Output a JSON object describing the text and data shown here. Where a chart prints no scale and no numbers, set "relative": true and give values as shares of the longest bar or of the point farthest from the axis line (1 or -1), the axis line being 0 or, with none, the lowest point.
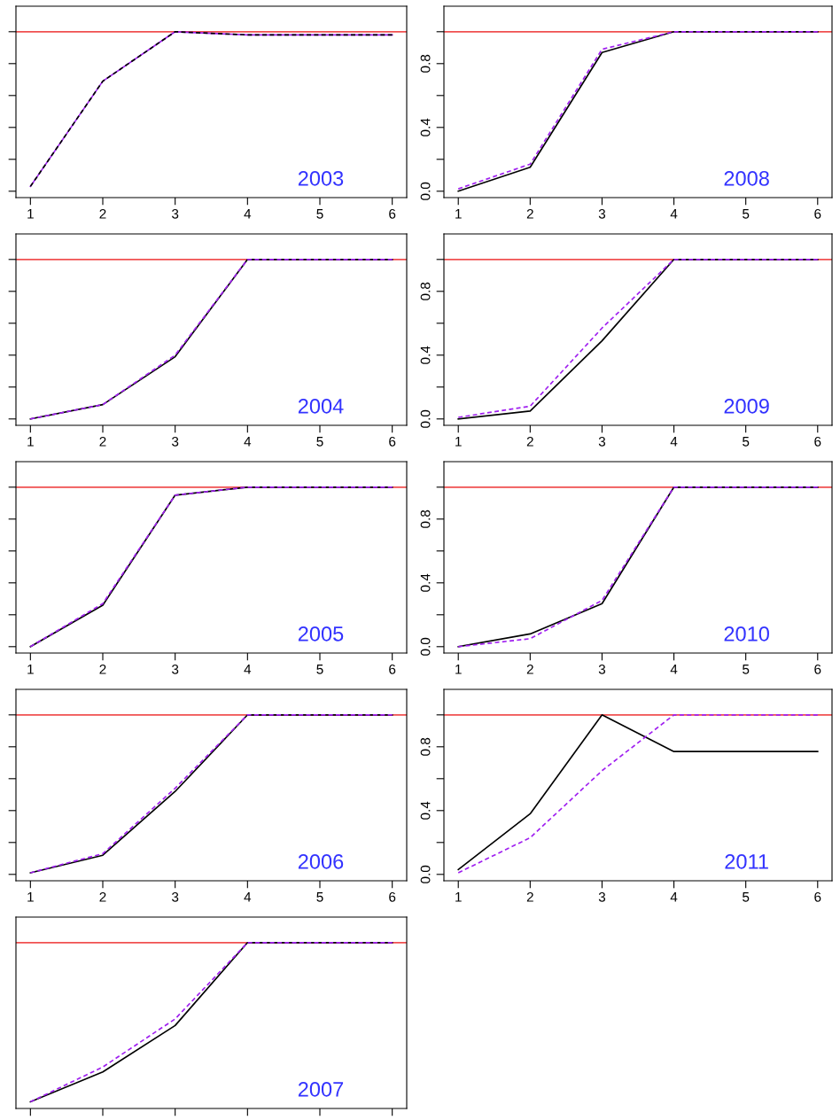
{
  "chart_data": [
    {
      "type": "line",
      "annotations": [
        "2003"
      ],
      "x": [
        1,
        2,
        3,
        4,
        5,
        6
      ],
      "xlim": [
        0.8,
        6.2
      ],
      "xticks": [
        1,
        2,
        3,
        4,
        5,
        6
      ],
      "ylim": [
        -0.04,
        1.16
      ],
      "yticks": [
        0,
        0.2,
        0.4,
        0.6,
        0.8,
        1.0
      ],
      "tick_labels": "x",
      "grid": false,
      "ref_lines": [
        {
          "axis": "y",
          "value": 1.0,
          "color": "#f05050"
        }
      ],
      "series": [
        {
          "color": "#a020f0",
          "line_style": "solid",
          "values": [
            0.03,
            0.69,
            1.0,
            0.98,
            0.98,
            0.98
          ]
        },
        {
          "color": "#000000",
          "line_style": "dashed",
          "values": [
            0.03,
            0.69,
            1.0,
            0.98,
            0.98,
            0.98
          ]
        }
      ]
    },
    {
      "type": "line",
      "annotations": [
        "2008"
      ],
      "x": [
        1,
        2,
        3,
        4,
        5,
        6
      ],
      "xlim": [
        0.8,
        6.2
      ],
      "xticks": [
        1,
        2,
        3,
        4,
        5,
        6
      ],
      "ylim": [
        -0.04,
        1.16
      ],
      "yticks": [
        {
          "value": 0,
          "label": "0.0"
        },
        {
          "value": 0.2,
          "label": null
        },
        {
          "value": 0.4,
          "label": "0.4"
        },
        {
          "value": 0.6,
          "label": null
        },
        {
          "value": 0.8,
          "label": "0.8"
        },
        {
          "value": 1.0,
          "label": null
        }
      ],
      "grid": false,
      "ref_lines": [
        {
          "axis": "y",
          "value": 1.0,
          "color": "#f05050"
        }
      ],
      "series": [
        {
          "color": "#000000",
          "line_style": "solid",
          "values": [
            0.0,
            0.15,
            0.87,
            1.0,
            1.0,
            1.0
          ]
        },
        {
          "color": "#a020f0",
          "line_style": "dashed",
          "values": [
            0.015,
            0.17,
            0.89,
            1.0,
            1.0,
            1.0
          ]
        }
      ]
    },
    {
      "type": "line",
      "annotations": [
        "2004"
      ],
      "x": [
        1,
        2,
        3,
        4,
        5,
        6
      ],
      "xlim": [
        0.8,
        6.2
      ],
      "xticks": [
        1,
        2,
        3,
        4,
        5,
        6
      ],
      "ylim": [
        -0.04,
        1.16
      ],
      "yticks": [
        0,
        0.2,
        0.4,
        0.6,
        0.8,
        1.0
      ],
      "tick_labels": "x",
      "grid": false,
      "ref_lines": [
        {
          "axis": "y",
          "value": 1.0,
          "color": "#f05050"
        }
      ],
      "series": [
        {
          "color": "#000000",
          "line_style": "solid",
          "values": [
            0.0,
            0.09,
            0.39,
            1.0,
            1.0,
            1.0
          ]
        },
        {
          "color": "#a020f0",
          "line_style": "dashed",
          "values": [
            0.0,
            0.09,
            0.4,
            1.0,
            1.0,
            1.0
          ]
        }
      ]
    },
    {
      "type": "line",
      "annotations": [
        "2009"
      ],
      "x": [
        1,
        2,
        3,
        4,
        5,
        6
      ],
      "xlim": [
        0.8,
        6.2
      ],
      "xticks": [
        1,
        2,
        3,
        4,
        5,
        6
      ],
      "ylim": [
        -0.04,
        1.16
      ],
      "yticks": [
        {
          "value": 0,
          "label": "0.0"
        },
        {
          "value": 0.2,
          "label": null
        },
        {
          "value": 0.4,
          "label": "0.4"
        },
        {
          "value": 0.6,
          "label": null
        },
        {
          "value": 0.8,
          "label": "0.8"
        },
        {
          "value": 1.0,
          "label": null
        }
      ],
      "grid": false,
      "ref_lines": [
        {
          "axis": "y",
          "value": 1.0,
          "color": "#f05050"
        }
      ],
      "series": [
        {
          "color": "#000000",
          "line_style": "solid",
          "values": [
            0.0,
            0.05,
            0.49,
            1.0,
            1.0,
            1.0
          ]
        },
        {
          "color": "#a020f0",
          "line_style": "dashed",
          "values": [
            0.01,
            0.08,
            0.57,
            1.0,
            1.0,
            1.0
          ]
        }
      ]
    },
    {
      "type": "line",
      "annotations": [
        "2005"
      ],
      "x": [
        1,
        2,
        3,
        4,
        5,
        6
      ],
      "xlim": [
        0.8,
        6.2
      ],
      "xticks": [
        1,
        2,
        3,
        4,
        5,
        6
      ],
      "ylim": [
        -0.04,
        1.16
      ],
      "yticks": [
        0,
        0.2,
        0.4,
        0.6,
        0.8,
        1.0
      ],
      "tick_labels": "x",
      "grid": false,
      "ref_lines": [
        {
          "axis": "y",
          "value": 1.0,
          "color": "#f05050"
        }
      ],
      "series": [
        {
          "color": "#000000",
          "line_style": "solid",
          "values": [
            0.0,
            0.26,
            0.95,
            1.0,
            1.0,
            1.0
          ]
        },
        {
          "color": "#a020f0",
          "line_style": "dashed",
          "values": [
            0.0,
            0.27,
            0.95,
            1.0,
            1.0,
            1.0
          ]
        }
      ]
    },
    {
      "type": "line",
      "annotations": [
        "2010"
      ],
      "x": [
        1,
        2,
        3,
        4,
        5,
        6
      ],
      "xlim": [
        0.8,
        6.2
      ],
      "xticks": [
        1,
        2,
        3,
        4,
        5,
        6
      ],
      "ylim": [
        -0.04,
        1.16
      ],
      "yticks": [
        {
          "value": 0,
          "label": "0.0"
        },
        {
          "value": 0.2,
          "label": null
        },
        {
          "value": 0.4,
          "label": "0.4"
        },
        {
          "value": 0.6,
          "label": null
        },
        {
          "value": 0.8,
          "label": "0.8"
        },
        {
          "value": 1.0,
          "label": null
        }
      ],
      "grid": false,
      "ref_lines": [
        {
          "axis": "y",
          "value": 1.0,
          "color": "#f05050"
        }
      ],
      "series": [
        {
          "color": "#000000",
          "line_style": "solid",
          "values": [
            0.0,
            0.08,
            0.27,
            1.0,
            1.0,
            1.0
          ]
        },
        {
          "color": "#a020f0",
          "line_style": "dashed",
          "values": [
            0.0,
            0.05,
            0.29,
            1.0,
            1.0,
            1.0
          ]
        }
      ]
    },
    {
      "type": "line",
      "annotations": [
        "2006"
      ],
      "x": [
        1,
        2,
        3,
        4,
        5,
        6
      ],
      "xlim": [
        0.8,
        6.2
      ],
      "xticks": [
        1,
        2,
        3,
        4,
        5,
        6
      ],
      "ylim": [
        -0.04,
        1.16
      ],
      "yticks": [
        0,
        0.2,
        0.4,
        0.6,
        0.8,
        1.0
      ],
      "tick_labels": "x",
      "grid": false,
      "ref_lines": [
        {
          "axis": "y",
          "value": 1.0,
          "color": "#f05050"
        }
      ],
      "series": [
        {
          "color": "#000000",
          "line_style": "solid",
          "values": [
            0.01,
            0.12,
            0.52,
            1.0,
            1.0,
            1.0
          ]
        },
        {
          "color": "#a020f0",
          "line_style": "dashed",
          "values": [
            0.01,
            0.13,
            0.54,
            1.0,
            1.0,
            1.0
          ]
        }
      ]
    },
    {
      "type": "line",
      "annotations": [
        "2011"
      ],
      "x": [
        1,
        2,
        3,
        4,
        5,
        6
      ],
      "xlim": [
        0.8,
        6.2
      ],
      "xticks": [
        1,
        2,
        3,
        4,
        5,
        6
      ],
      "ylim": [
        -0.04,
        1.16
      ],
      "yticks": [
        {
          "value": 0,
          "label": "0.0"
        },
        {
          "value": 0.2,
          "label": null
        },
        {
          "value": 0.4,
          "label": "0.4"
        },
        {
          "value": 0.6,
          "label": null
        },
        {
          "value": 0.8,
          "label": "0.8"
        },
        {
          "value": 1.0,
          "label": null
        }
      ],
      "grid": false,
      "ref_lines": [
        {
          "axis": "y",
          "value": 1.0,
          "color": "#f05050"
        }
      ],
      "series": [
        {
          "color": "#000000",
          "line_style": "solid",
          "values": [
            0.03,
            0.38,
            1.0,
            0.77,
            0.77,
            0.77
          ]
        },
        {
          "color": "#a020f0",
          "line_style": "dashed",
          "values": [
            0.01,
            0.23,
            0.65,
            1.0,
            1.0,
            1.0
          ]
        }
      ]
    },
    {
      "type": "line",
      "annotations": [
        "2007"
      ],
      "categories": [
        null,
        null,
        null,
        null,
        null,
        null
      ],
      "relative": true,
      "grid": false,
      "ref_lines": [
        {
          "axis": "y",
          "value": 1.0,
          "color": "#f05050"
        }
      ],
      "series": [
        {
          "color": "#000000",
          "line_style": "solid",
          "values": [
            0.04,
            0.22,
            0.5,
            1.0,
            1.0,
            1.0
          ]
        },
        {
          "color": "#a020f0",
          "line_style": "dashed",
          "values": [
            0.04,
            0.25,
            0.54,
            1.0,
            1.0,
            1.0
          ]
        }
      ]
    }
  ]
}
